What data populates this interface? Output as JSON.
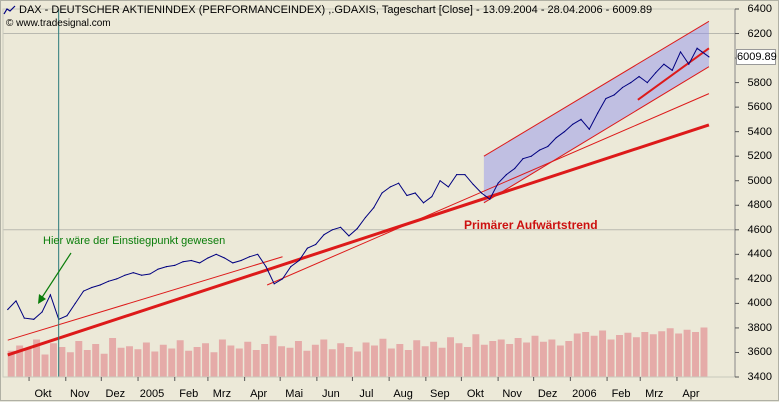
{
  "header": {
    "chart_icon": "line-chart-icon",
    "title": "DAX  - DEUTSCHER AKTIENINDEX (PERFORMANCEINDEX) ,.GDAXIS, Tageschart [Close] - 13.09.2004 - 28.04.2006 - 6009.89",
    "credit": "© www.tradesignal.com"
  },
  "annotations": {
    "entry_point": "Hier wäre der Einstiegpunkt gewesen",
    "primary_trend": "Primärer Aufwärtstrend"
  },
  "last_value_label": "6009.89",
  "colors": {
    "background": "#ece9d8",
    "price_line": "#000080",
    "channel_fill": "#8c8cf0",
    "trend_red": "#dd1a1a",
    "volume_bar": "#e4a0a0",
    "gridline": "#b9b9b0",
    "annotation_green": "#0a7d0a",
    "vertical_marker": "#2c7a7a"
  },
  "chart_data": {
    "type": "line",
    "title": "DAX  - DEUTSCHER AKTIENINDEX (PERFORMANCEINDEX) ,.GDAXIS, Tageschart [Close] - 13.09.2004 - 28.04.2006 - 6009.89",
    "xlabel": "",
    "ylabel": "",
    "ylim": [
      3400,
      6400
    ],
    "y_ticks": [
      3400,
      3600,
      3800,
      4000,
      4200,
      4400,
      4600,
      4800,
      5000,
      5200,
      5400,
      5600,
      5800,
      6000,
      6200,
      6400
    ],
    "y_tick_labels": [
      "3400",
      "3600",
      "3800",
      "4000",
      "4200",
      "4400",
      "4600",
      "4800",
      "5000",
      "5200",
      "5400",
      "5600",
      "5800",
      "6000",
      "6200",
      "6400"
    ],
    "x_range": [
      "2004-09-13",
      "2006-04-28"
    ],
    "x_tick_labels": [
      {
        "label": "Okt",
        "date": "2004-10-01"
      },
      {
        "label": "Nov",
        "date": "2004-11-01"
      },
      {
        "label": "Dez",
        "date": "2004-12-01"
      },
      {
        "label": "2005",
        "date": "2005-01-01"
      },
      {
        "label": "Feb",
        "date": "2005-02-01"
      },
      {
        "label": "Mrz",
        "date": "2005-03-01"
      },
      {
        "label": "Apr",
        "date": "2005-04-01"
      },
      {
        "label": "Mai",
        "date": "2005-05-01"
      },
      {
        "label": "Jun",
        "date": "2005-06-01"
      },
      {
        "label": "Jul",
        "date": "2005-07-01"
      },
      {
        "label": "Aug",
        "date": "2005-08-01"
      },
      {
        "label": "Sep",
        "date": "2005-09-01"
      },
      {
        "label": "Okt",
        "date": "2005-10-01"
      },
      {
        "label": "Nov",
        "date": "2005-11-01"
      },
      {
        "label": "Dez",
        "date": "2005-12-01"
      },
      {
        "label": "2006",
        "date": "2006-01-01"
      },
      {
        "label": "Feb",
        "date": "2006-02-01"
      },
      {
        "label": "Mrz",
        "date": "2006-03-01"
      },
      {
        "label": "Apr",
        "date": "2006-04-01"
      }
    ],
    "series": [
      {
        "points": [
          [
            "2004-09-13",
            3950
          ],
          [
            "2004-09-20",
            4020
          ],
          [
            "2004-09-27",
            3880
          ],
          [
            "2004-10-05",
            3870
          ],
          [
            "2004-10-12",
            3930
          ],
          [
            "2004-10-19",
            4070
          ],
          [
            "2004-10-26",
            3870
          ],
          [
            "2004-11-02",
            3900
          ],
          [
            "2004-11-09",
            4000
          ],
          [
            "2004-11-16",
            4100
          ],
          [
            "2004-11-23",
            4130
          ],
          [
            "2004-11-30",
            4150
          ],
          [
            "2004-12-07",
            4180
          ],
          [
            "2004-12-14",
            4200
          ],
          [
            "2004-12-21",
            4230
          ],
          [
            "2004-12-28",
            4250
          ],
          [
            "2005-01-04",
            4230
          ],
          [
            "2005-01-11",
            4240
          ],
          [
            "2005-01-18",
            4280
          ],
          [
            "2005-01-25",
            4300
          ],
          [
            "2005-02-01",
            4310
          ],
          [
            "2005-02-08",
            4340
          ],
          [
            "2005-02-15",
            4350
          ],
          [
            "2005-02-22",
            4330
          ],
          [
            "2005-03-01",
            4370
          ],
          [
            "2005-03-08",
            4400
          ],
          [
            "2005-03-15",
            4370
          ],
          [
            "2005-03-22",
            4330
          ],
          [
            "2005-03-29",
            4350
          ],
          [
            "2005-04-05",
            4380
          ],
          [
            "2005-04-12",
            4400
          ],
          [
            "2005-04-19",
            4300
          ],
          [
            "2005-04-26",
            4160
          ],
          [
            "2005-05-03",
            4200
          ],
          [
            "2005-05-10",
            4300
          ],
          [
            "2005-05-17",
            4350
          ],
          [
            "2005-05-24",
            4450
          ],
          [
            "2005-05-31",
            4480
          ],
          [
            "2005-06-07",
            4560
          ],
          [
            "2005-06-14",
            4600
          ],
          [
            "2005-06-21",
            4620
          ],
          [
            "2005-06-28",
            4550
          ],
          [
            "2005-07-05",
            4610
          ],
          [
            "2005-07-12",
            4700
          ],
          [
            "2005-07-19",
            4780
          ],
          [
            "2005-07-26",
            4900
          ],
          [
            "2005-08-02",
            4950
          ],
          [
            "2005-08-09",
            4980
          ],
          [
            "2005-08-16",
            4880
          ],
          [
            "2005-08-23",
            4900
          ],
          [
            "2005-08-30",
            4820
          ],
          [
            "2005-09-06",
            4870
          ],
          [
            "2005-09-13",
            5000
          ],
          [
            "2005-09-20",
            4950
          ],
          [
            "2005-09-27",
            5050
          ],
          [
            "2005-10-04",
            5050
          ],
          [
            "2005-10-11",
            4970
          ],
          [
            "2005-10-18",
            4900
          ],
          [
            "2005-10-25",
            4850
          ],
          [
            "2005-11-01",
            4980
          ],
          [
            "2005-11-08",
            5050
          ],
          [
            "2005-11-15",
            5100
          ],
          [
            "2005-11-22",
            5180
          ],
          [
            "2005-11-29",
            5200
          ],
          [
            "2005-12-06",
            5250
          ],
          [
            "2005-12-13",
            5280
          ],
          [
            "2005-12-20",
            5350
          ],
          [
            "2005-12-27",
            5400
          ],
          [
            "2006-01-03",
            5460
          ],
          [
            "2006-01-10",
            5500
          ],
          [
            "2006-01-17",
            5420
          ],
          [
            "2006-01-24",
            5550
          ],
          [
            "2006-01-31",
            5670
          ],
          [
            "2006-02-07",
            5700
          ],
          [
            "2006-02-14",
            5760
          ],
          [
            "2006-02-21",
            5800
          ],
          [
            "2006-02-28",
            5850
          ],
          [
            "2006-03-07",
            5800
          ],
          [
            "2006-03-14",
            5880
          ],
          [
            "2006-03-21",
            5950
          ],
          [
            "2006-03-28",
            5900
          ],
          [
            "2006-04-04",
            6050
          ],
          [
            "2006-04-11",
            5950
          ],
          [
            "2006-04-18",
            6080
          ],
          [
            "2006-04-28",
            6010
          ]
        ]
      }
    ],
    "trendlines": [
      {
        "role": "primary",
        "from": [
          "2004-09-13",
          3580
        ],
        "to": [
          "2006-04-28",
          5455
        ]
      },
      {
        "role": "thin",
        "from": [
          "2004-09-13",
          3700
        ],
        "to": [
          "2005-05-03",
          4380
        ]
      },
      {
        "role": "thin",
        "from": [
          "2005-04-20",
          4150
        ],
        "to": [
          "2006-04-28",
          5710
        ]
      },
      {
        "role": "channel-upper",
        "from": [
          "2005-10-20",
          5200
        ],
        "to": [
          "2006-04-28",
          6300
        ]
      },
      {
        "role": "channel-lower",
        "from": [
          "2005-10-20",
          4820
        ],
        "to": [
          "2006-04-28",
          5930
        ]
      },
      {
        "role": "sub-channel",
        "from": [
          "2006-02-27",
          5660
        ],
        "to": [
          "2006-04-28",
          6080
        ]
      }
    ],
    "volume": {
      "description": "volume bars at bottom",
      "relative_heights": [
        0.35,
        0.42,
        0.38,
        0.5,
        0.3,
        0.45,
        0.4,
        0.33,
        0.48,
        0.36,
        0.44,
        0.31,
        0.52,
        0.39,
        0.41,
        0.37,
        0.46,
        0.34,
        0.43,
        0.38,
        0.49,
        0.35,
        0.4,
        0.45,
        0.33,
        0.5,
        0.42,
        0.38,
        0.47,
        0.36,
        0.44,
        0.55,
        0.41,
        0.39,
        0.48,
        0.35,
        0.43,
        0.5,
        0.37,
        0.45,
        0.4,
        0.34,
        0.46,
        0.42,
        0.51,
        0.38,
        0.44,
        0.36,
        0.49,
        0.41,
        0.47,
        0.39,
        0.53,
        0.45,
        0.4,
        0.57,
        0.43,
        0.48,
        0.5,
        0.44,
        0.52,
        0.46,
        0.55,
        0.47,
        0.5,
        0.42,
        0.48,
        0.58,
        0.6,
        0.55,
        0.62,
        0.5,
        0.56,
        0.59,
        0.53,
        0.6,
        0.57,
        0.61,
        0.65,
        0.58,
        0.63,
        0.6,
        0.66
      ]
    }
  }
}
